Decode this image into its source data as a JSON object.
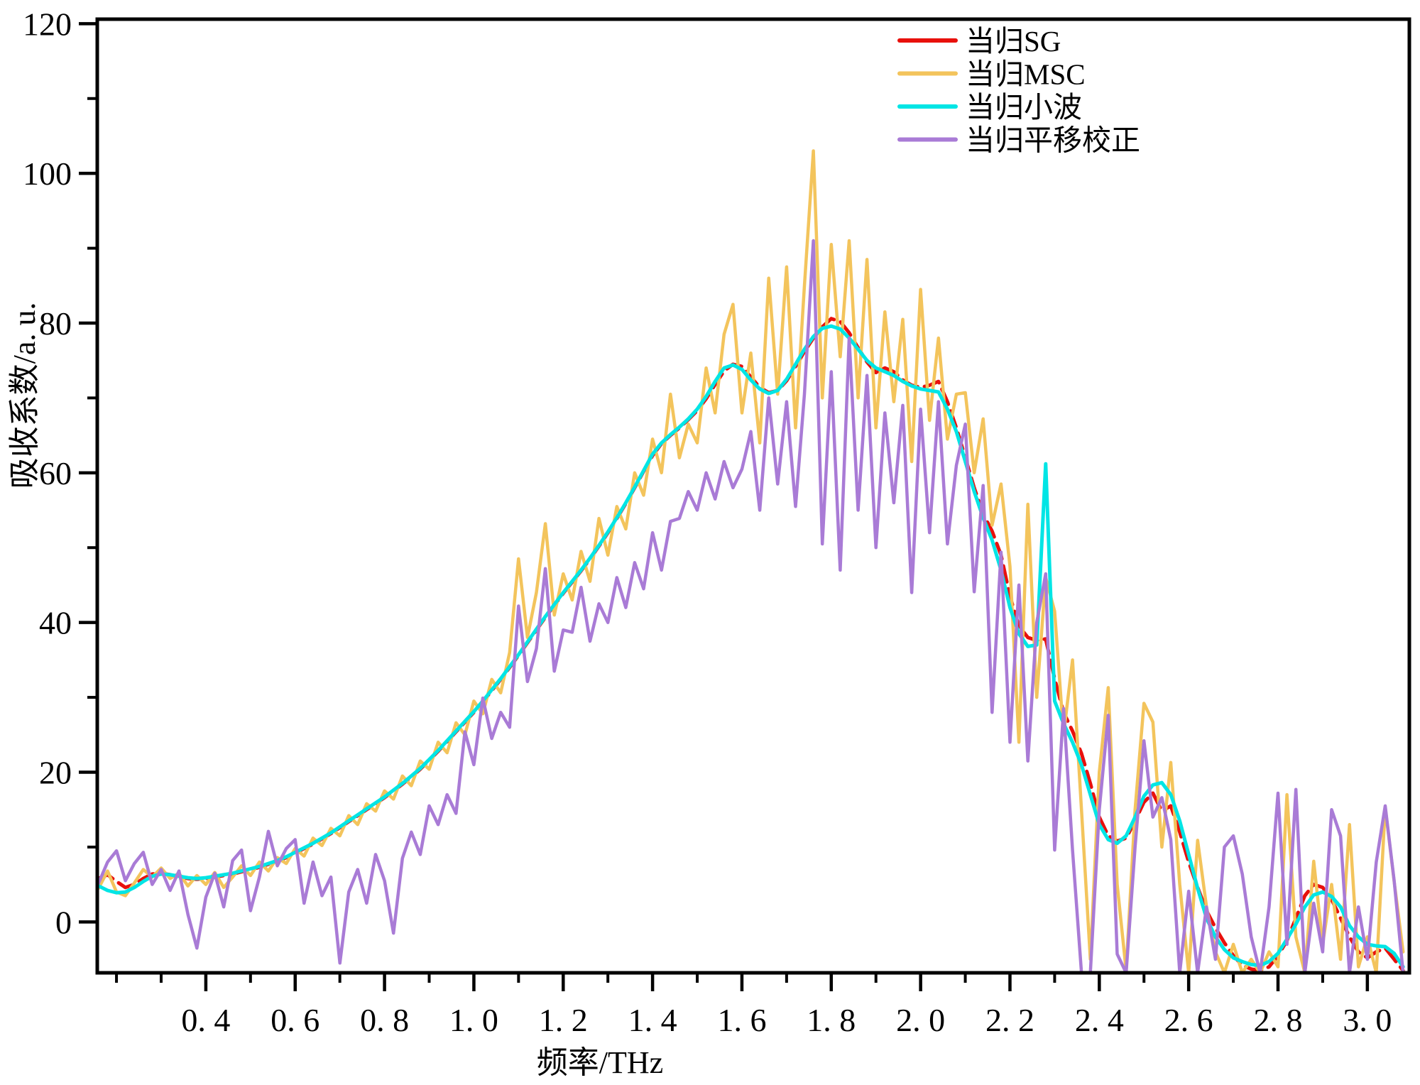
{
  "chart_data": {
    "type": "line",
    "title": "",
    "xlabel": "频率/THz",
    "ylabel": "吸收系数/a. u.",
    "xlim": [
      0.157,
      3.094
    ],
    "ylim": [
      -6.8,
      120.6
    ],
    "grid": false,
    "legend_position": "upper-right-inside",
    "x_major_ticks": [
      0.4,
      0.6,
      0.8,
      1.0,
      1.2,
      1.4,
      1.6,
      1.8,
      2.0,
      2.2,
      2.4,
      2.6,
      2.8,
      3.0
    ],
    "x_tick_labels": [
      "0. 4",
      "0. 6",
      "0. 8",
      "1. 0",
      "1. 2",
      "1. 4",
      "1. 6",
      "1. 8",
      "2. 0",
      "2. 2",
      "2. 4",
      "2. 6",
      "2. 8",
      "3. 0"
    ],
    "x_minor_ticks": [
      0.2,
      0.3,
      0.5,
      0.7,
      0.9,
      1.1,
      1.3,
      1.5,
      1.7,
      1.9,
      2.1,
      2.3,
      2.5,
      2.7,
      2.9
    ],
    "y_major_ticks": [
      0,
      20,
      40,
      60,
      80,
      100,
      120
    ],
    "y_tick_labels": [
      "0",
      "20",
      "40",
      "60",
      "80",
      "100",
      "120"
    ],
    "y_minor_ticks": [
      10,
      30,
      50,
      70,
      90,
      110
    ],
    "x_start": 0.16,
    "x_step": 0.02,
    "series": [
      {
        "name": "当归SG",
        "color": "#e8100c",
        "style": "dashed",
        "width": 5,
        "values": [
          5.8,
          6.3,
          5.4,
          4.6,
          5.0,
          5.8,
          6.4,
          6.5,
          6.3,
          6.0,
          5.8,
          5.7,
          5.8,
          6.0,
          6.2,
          6.4,
          6.7,
          7.0,
          7.3,
          7.7,
          8.1,
          8.6,
          9.2,
          9.8,
          10.4,
          11.1,
          11.8,
          12.6,
          13.4,
          14.2,
          15.0,
          15.8,
          16.6,
          17.5,
          18.4,
          19.4,
          20.4,
          21.6,
          22.8,
          24.1,
          25.4,
          26.7,
          28.0,
          29.4,
          30.9,
          32.4,
          34.0,
          35.6,
          37.3,
          39.0,
          40.7,
          42.3,
          43.9,
          45.4,
          46.9,
          48.5,
          50.2,
          52.0,
          53.9,
          55.9,
          58.0,
          60.2,
          62.3,
          63.9,
          65.0,
          66.0,
          67.1,
          68.3,
          69.9,
          71.8,
          73.6,
          74.5,
          74.2,
          72.8,
          71.4,
          70.7,
          71.0,
          72.3,
          74.2,
          76.2,
          78.0,
          79.5,
          80.6,
          80.2,
          78.7,
          76.7,
          74.8,
          73.4,
          74.0,
          73.5,
          72.4,
          71.7,
          71.4,
          71.7,
          72.2,
          69.5,
          66.0,
          62.0,
          58.0,
          54.5,
          52.2,
          49.0,
          43.5,
          39.5,
          38.0,
          37.6,
          37.8,
          32.5,
          28.0,
          25.5,
          22.5,
          18.5,
          14.0,
          11.5,
          10.8,
          11.2,
          13.5,
          16.0,
          17.2,
          14.8,
          15.5,
          12.0,
          8.0,
          4.6,
          1.5,
          -0.8,
          -2.8,
          -4.5,
          -5.8,
          -6.3,
          -6.5,
          -6.0,
          -4.5,
          -2.5,
          0.5,
          3.5,
          5.0,
          4.6,
          3.0,
          0.5,
          -2.0,
          -4.0,
          -4.8,
          -4.0,
          -3.5,
          -5.0,
          -6.5
        ]
      },
      {
        "name": "当归MSC",
        "color": "#f3c45c",
        "style": "solid",
        "width": 4.5,
        "values": [
          4.5,
          6.8,
          4.0,
          3.5,
          5.2,
          7.0,
          6.0,
          7.2,
          5.8,
          6.5,
          4.8,
          6.2,
          5.0,
          6.6,
          4.6,
          6.0,
          7.5,
          6.2,
          8.0,
          6.8,
          8.6,
          7.8,
          9.8,
          8.8,
          11.2,
          10.2,
          12.5,
          11.5,
          14.2,
          13.0,
          15.8,
          14.8,
          17.5,
          16.4,
          19.5,
          18.2,
          21.5,
          20.4,
          24.0,
          22.6,
          26.6,
          25.0,
          29.5,
          27.8,
          32.4,
          30.6,
          36.0,
          48.5,
          38.0,
          44.0,
          53.2,
          41.0,
          46.5,
          43.0,
          49.5,
          45.5,
          53.9,
          49.0,
          55.5,
          52.5,
          60.0,
          57.0,
          64.5,
          60.0,
          70.5,
          62.0,
          66.5,
          64.0,
          74.0,
          68.0,
          78.5,
          82.5,
          68.0,
          76.0,
          64.0,
          86.0,
          70.5,
          87.5,
          66.0,
          85.0,
          103.0,
          70.0,
          90.5,
          75.5,
          91.0,
          70.0,
          88.5,
          66.0,
          81.5,
          69.5,
          80.5,
          61.5,
          84.5,
          67.0,
          78.0,
          64.5,
          70.5,
          70.7,
          60.0,
          67.2,
          53.0,
          58.5,
          47.5,
          24.0,
          55.8,
          30.0,
          46.0,
          41.5,
          25.0,
          35.0,
          15.0,
          -5.0,
          20.0,
          31.3,
          5.0,
          -6.5,
          15.0,
          29.2,
          26.7,
          10.0,
          21.3,
          5.0,
          -6.8,
          10.9,
          2.0,
          -4.0,
          -6.8,
          -3.0,
          -6.8,
          -5.0,
          -6.8,
          -4.0,
          -6.0,
          17.0,
          -2.0,
          -6.8,
          8.1,
          -3.0,
          5.0,
          -5.0,
          13.0,
          -6.0,
          -2.0,
          -6.8,
          15.3,
          5.4,
          -4.0
        ]
      },
      {
        "name": "当归小波",
        "color": "#00e5e5",
        "style": "solid",
        "width": 5,
        "values": [
          4.8,
          4.2,
          3.9,
          4.0,
          4.6,
          5.4,
          6.1,
          6.4,
          6.3,
          6.1,
          5.9,
          5.8,
          5.9,
          6.1,
          6.3,
          6.5,
          6.8,
          7.1,
          7.4,
          7.8,
          8.2,
          8.7,
          9.3,
          9.9,
          10.5,
          11.2,
          11.9,
          12.7,
          13.5,
          14.3,
          15.1,
          15.9,
          16.7,
          17.6,
          18.5,
          19.5,
          20.5,
          21.7,
          22.9,
          24.2,
          25.5,
          26.8,
          28.1,
          29.5,
          31.0,
          32.5,
          34.1,
          35.7,
          37.4,
          39.1,
          40.8,
          42.4,
          44.0,
          45.5,
          47.0,
          48.6,
          50.3,
          52.1,
          54.0,
          56.0,
          58.1,
          60.3,
          62.5,
          64.0,
          65.1,
          66.1,
          67.2,
          68.5,
          70.2,
          72.2,
          74.0,
          74.4,
          73.8,
          72.4,
          71.2,
          70.6,
          71.0,
          72.5,
          74.5,
          76.5,
          78.2,
          79.3,
          79.6,
          79.2,
          78.0,
          76.5,
          75.0,
          74.0,
          73.5,
          73.0,
          72.2,
          71.6,
          71.2,
          71.0,
          70.8,
          68.5,
          65.5,
          61.5,
          57.5,
          54.0,
          51.0,
          47.0,
          42.0,
          38.5,
          36.8,
          37.0,
          61.2,
          29.5,
          26.5,
          24.0,
          21.0,
          17.0,
          13.0,
          11.0,
          10.5,
          11.5,
          14.0,
          16.8,
          18.3,
          18.6,
          17.0,
          13.5,
          9.0,
          4.5,
          0.5,
          -2.0,
          -3.7,
          -4.8,
          -5.3,
          -5.7,
          -5.8,
          -5.3,
          -4.2,
          -2.3,
          -0.3,
          2.0,
          3.6,
          4.0,
          3.4,
          2.0,
          -0.5,
          -2.0,
          -3.0,
          -3.2,
          -3.3,
          -4.2,
          -6.0
        ]
      },
      {
        "name": "当归平移校正",
        "color": "#a97bd6",
        "style": "solid",
        "width": 4.5,
        "values": [
          5.2,
          8.0,
          9.5,
          5.5,
          7.8,
          9.3,
          5.0,
          7.0,
          4.2,
          6.8,
          1.0,
          -3.5,
          3.3,
          6.5,
          2.0,
          8.2,
          9.6,
          1.5,
          6.0,
          12.1,
          7.5,
          9.8,
          11.0,
          2.5,
          8.0,
          3.5,
          6.0,
          -5.5,
          4.0,
          7.0,
          2.5,
          9.0,
          5.5,
          -1.5,
          8.5,
          12.0,
          9.0,
          15.5,
          13.0,
          17.0,
          14.5,
          25.4,
          21.0,
          29.9,
          24.5,
          28.0,
          26.0,
          42.2,
          32.1,
          36.5,
          47.2,
          33.5,
          39.0,
          38.7,
          44.7,
          37.5,
          42.5,
          40.0,
          46.0,
          42.0,
          48.0,
          44.5,
          52.0,
          47.0,
          53.5,
          53.9,
          57.5,
          55.0,
          60.0,
          56.5,
          61.5,
          58.0,
          60.5,
          65.5,
          55.0,
          70.0,
          58.5,
          69.5,
          55.5,
          70.5,
          91.0,
          50.5,
          73.5,
          47.0,
          78.0,
          55.0,
          73.0,
          50.0,
          68.0,
          56.0,
          69.0,
          44.0,
          68.5,
          52.0,
          69.5,
          50.5,
          61.0,
          66.5,
          44.1,
          58.3,
          28.0,
          49.4,
          24.0,
          45.0,
          21.5,
          40.0,
          46.5,
          9.6,
          28.5,
          9.6,
          -6.8,
          -6.8,
          15.0,
          27.6,
          -4.3,
          -6.8,
          10.0,
          24.2,
          14.0,
          16.6,
          11.0,
          -6.8,
          4.1,
          -6.8,
          2.0,
          -5.0,
          10.0,
          11.5,
          6.4,
          -2.0,
          -6.8,
          2.0,
          17.2,
          -3.0,
          17.7,
          -6.8,
          2.5,
          -4.0,
          15.0,
          11.5,
          -6.8,
          2.0,
          -5.0,
          8.0,
          15.5,
          5.5,
          -6.8
        ]
      }
    ]
  }
}
